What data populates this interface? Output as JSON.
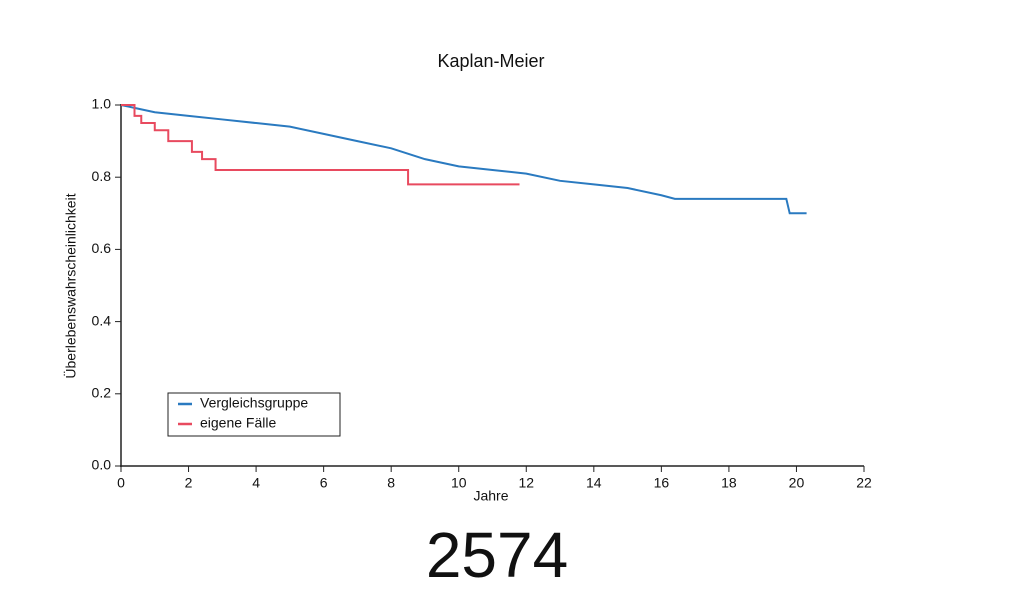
{
  "chart_data": {
    "type": "line",
    "title": "Kaplan-Meier",
    "xlabel": "Jahre",
    "ylabel": "Überlebenswahrscheinlichkeit",
    "annotation": "2574",
    "xlim": [
      0,
      22
    ],
    "xticks": [
      0,
      2,
      4,
      6,
      8,
      10,
      12,
      14,
      16,
      18,
      20,
      22
    ],
    "ylim": [
      0,
      1
    ],
    "yticks": [
      {
        "value": 0,
        "label": "0.0"
      },
      0.2,
      0.4,
      0.6,
      0.8,
      {
        "value": 1,
        "label": "1.0"
      }
    ],
    "grid": false,
    "legend": "lower-left",
    "series": [
      {
        "name": "Vergleichsgruppe",
        "color": "#2a7ac0",
        "step": false,
        "x": [
          0,
          0.5,
          1,
          2,
          3,
          4,
          5,
          6,
          7,
          8,
          9,
          10,
          11,
          12,
          13,
          14,
          15,
          16,
          16.4,
          19.7,
          19.8,
          20.3
        ],
        "values": [
          1.0,
          0.99,
          0.98,
          0.97,
          0.96,
          0.95,
          0.94,
          0.92,
          0.9,
          0.88,
          0.85,
          0.83,
          0.82,
          0.81,
          0.79,
          0.78,
          0.77,
          0.75,
          0.74,
          0.74,
          0.7,
          0.7
        ]
      },
      {
        "name": "eigene Fälle",
        "color": "#e84a5f",
        "step": true,
        "x": [
          0,
          0.4,
          0.6,
          1.0,
          1.4,
          2.1,
          2.4,
          2.8,
          8.5,
          11.8
        ],
        "values": [
          1.0,
          0.97,
          0.95,
          0.93,
          0.9,
          0.87,
          0.85,
          0.82,
          0.78,
          0.78
        ]
      }
    ]
  }
}
